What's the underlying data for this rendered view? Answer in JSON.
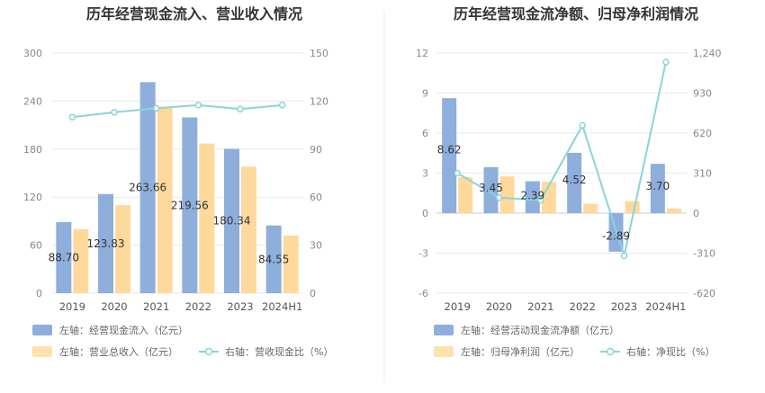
{
  "chart_data": [
    {
      "type": "bar",
      "title": "历年经营现金流入、营业收入情况",
      "categories": [
        "2019",
        "2020",
        "2021",
        "2022",
        "2023",
        "2024H1"
      ],
      "left_axis": {
        "ylim": [
          0,
          300
        ],
        "ticks": [
          "0",
          "60",
          "120",
          "180",
          "240",
          "300"
        ]
      },
      "right_axis": {
        "ylim": [
          0,
          150
        ],
        "ticks": [
          "0",
          "30",
          "60",
          "90",
          "120",
          "150"
        ]
      },
      "series": [
        {
          "name": "左轴：经营现金流入（亿元）",
          "kind": "bar",
          "axis": "left",
          "color": "#8eaedc",
          "values": [
            88.7,
            123.83,
            263.66,
            219.56,
            180.34,
            84.55
          ],
          "labels": [
            "88.70",
            "123.83",
            "263.66",
            "219.56",
            "180.34",
            "84.55"
          ]
        },
        {
          "name": "左轴：营业总收入（亿元）",
          "kind": "bar",
          "axis": "left",
          "color": "#ffd99c",
          "values": [
            80,
            110,
            233,
            187,
            158,
            72
          ]
        },
        {
          "name": "右轴：营收现金比（%）",
          "kind": "line",
          "axis": "right",
          "color": "#8ad4d8",
          "values": [
            110,
            113,
            115.5,
            117.5,
            115,
            117.5
          ]
        }
      ]
    },
    {
      "type": "bar",
      "title": "历年经营现金流净额、归母净利润情况",
      "categories": [
        "2019",
        "2020",
        "2021",
        "2022",
        "2023",
        "2024H1"
      ],
      "left_axis": {
        "ylim": [
          -6,
          12
        ],
        "ticks": [
          "-6",
          "-3",
          "0",
          "3",
          "6",
          "9",
          "12"
        ]
      },
      "right_axis": {
        "ylim": [
          -620,
          1240
        ],
        "ticks": [
          "-620",
          "-310",
          "0",
          "310",
          "620",
          "930",
          "1,240"
        ]
      },
      "series": [
        {
          "name": "左轴：经营活动现金流净额（亿元）",
          "kind": "bar",
          "axis": "left",
          "color": "#8eaedc",
          "values": [
            8.62,
            3.45,
            2.39,
            4.52,
            -2.89,
            3.7
          ],
          "labels": [
            "8.62",
            "3.45",
            "2.39",
            "4.52",
            "-2.89",
            "3.70"
          ]
        },
        {
          "name": "左轴：归母净利润（亿元）",
          "kind": "bar",
          "axis": "left",
          "color": "#ffd99c",
          "values": [
            2.7,
            2.75,
            2.35,
            0.7,
            0.9,
            0.35
          ]
        },
        {
          "name": "右轴：净现比（%）",
          "kind": "line",
          "axis": "right",
          "color": "#8ad4d8",
          "values": [
            310,
            120,
            100,
            680,
            -330,
            1170
          ]
        }
      ]
    }
  ]
}
